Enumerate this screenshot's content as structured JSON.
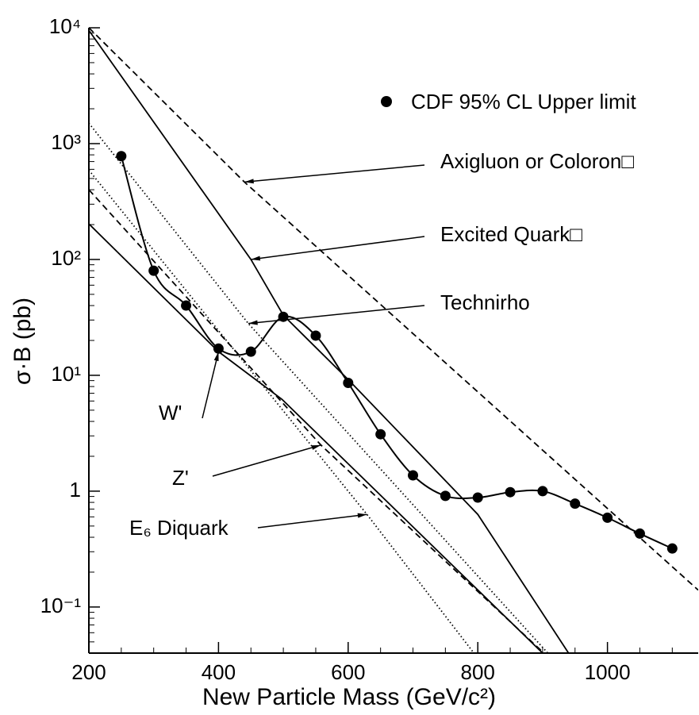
{
  "chart_data": {
    "type": "line",
    "x_label": "New Particle Mass (GeV/c²)",
    "y_label": "σ·B (pb)",
    "xlim": [
      200,
      1140
    ],
    "xticks": [
      200,
      400,
      600,
      800,
      1000
    ],
    "ylim": [
      0.04,
      10000
    ],
    "log_y": true,
    "yticks": [
      {
        "value": 0.1,
        "label": "10⁻¹"
      },
      1,
      {
        "value": 10,
        "label": "10¹"
      },
      {
        "value": 100,
        "label": "10²"
      },
      {
        "value": 1000,
        "label": "10³"
      },
      {
        "value": 10000,
        "label": "10⁴"
      }
    ],
    "series": [
      {
        "name": "CDF 95% CL Upper limit",
        "color": "#000000",
        "style": "markers",
        "x": [
          250,
          300,
          350,
          400,
          450,
          500,
          550,
          600,
          650,
          700,
          750,
          800,
          850,
          900,
          950,
          1000,
          1050,
          1100
        ],
        "values": [
          780,
          80,
          40,
          17,
          16,
          32,
          22,
          8.6,
          3.1,
          1.37,
          0.91,
          0.88,
          0.98,
          1.0,
          0.78,
          0.59,
          0.43,
          0.32
        ]
      },
      {
        "name": "Axigluon or Coloron□",
        "color": "#000000",
        "style": "dashed",
        "x": [
          200,
          440,
          1140
        ],
        "values": [
          10000,
          466,
          0.14
        ]
      },
      {
        "name": "Excited Quark□",
        "color": "#000000",
        "style": "solid",
        "x": [
          200,
          450,
          500,
          600,
          800,
          940
        ],
        "values": [
          9500,
          100,
          33,
          9.2,
          0.63,
          0.04
        ]
      },
      {
        "name": "Technirho",
        "color": "#000000",
        "style": "dotted",
        "x": [
          200,
          446,
          908
        ],
        "values": [
          1500,
          28,
          0.04
        ]
      },
      {
        "name": "W'",
        "color": "#000000",
        "style": "solid",
        "x": [
          200,
          400,
          498,
          900
        ],
        "values": [
          203,
          16,
          6.2,
          0.04
        ]
      },
      {
        "name": "Z'",
        "color": "#000000",
        "style": "dashed",
        "x": [
          200,
          558,
          902
        ],
        "values": [
          400,
          2.5,
          0.04
        ]
      },
      {
        "name": "E₆ Diquark",
        "color": "#000000",
        "style": "dotted",
        "x": [
          200,
          629,
          794
        ],
        "values": [
          590,
          0.63,
          0.04
        ]
      }
    ]
  }
}
